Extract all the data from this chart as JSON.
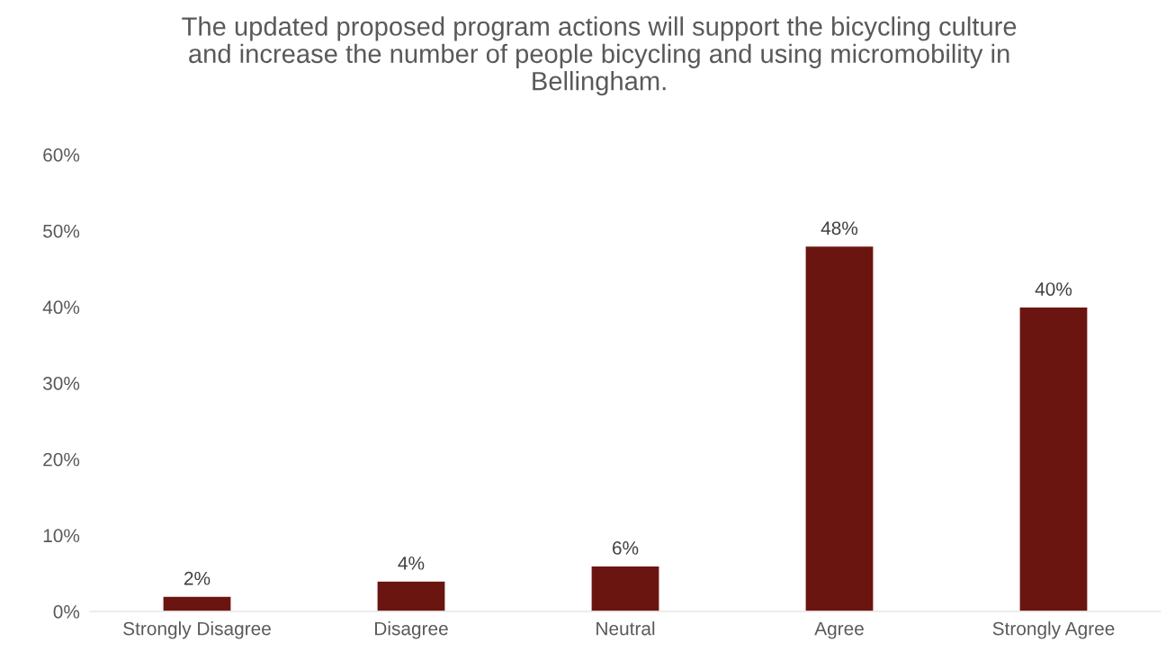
{
  "chart_data": {
    "type": "bar",
    "title": "The updated proposed program actions will support the bicycling culture and increase the number of people bicycling and using micromobility in Bellingham.",
    "categories": [
      "Strongly Disagree",
      "Disagree",
      "Neutral",
      "Agree",
      "Strongly Agree"
    ],
    "values": [
      2,
      4,
      6,
      48,
      40
    ],
    "value_labels": [
      "2%",
      "4%",
      "6%",
      "48%",
      "40%"
    ],
    "color": "#6b1510",
    "ylim": [
      0,
      60
    ],
    "yticks": [
      {
        "value": 0,
        "label": "0%"
      },
      {
        "value": 10,
        "label": "10%"
      },
      {
        "value": 20,
        "label": "20%"
      },
      {
        "value": 30,
        "label": "30%"
      },
      {
        "value": 40,
        "label": "40%"
      },
      {
        "value": 50,
        "label": "50%"
      },
      {
        "value": 60,
        "label": "60%"
      }
    ],
    "grid": false
  }
}
